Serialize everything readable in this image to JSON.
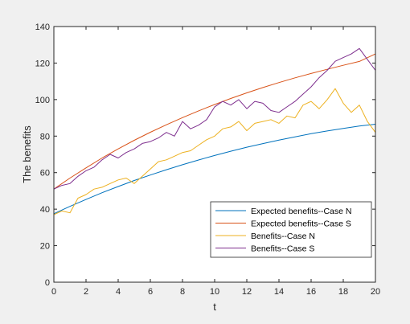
{
  "chart_data": {
    "type": "line",
    "title": "",
    "xlabel": "t",
    "ylabel": "The benefits",
    "xlim": [
      0,
      20
    ],
    "ylim": [
      0,
      140
    ],
    "xticks": [
      0,
      2,
      4,
      6,
      8,
      10,
      12,
      14,
      16,
      18,
      20
    ],
    "yticks": [
      0,
      20,
      40,
      60,
      80,
      100,
      120,
      140
    ],
    "grid": false,
    "legend_position": "bottom-right",
    "series": [
      {
        "name": "Expected benefits--Case N",
        "color": "#0072BD",
        "x": [
          0,
          1,
          2,
          3,
          4,
          5,
          6,
          7,
          8,
          9,
          10,
          11,
          12,
          13,
          14,
          15,
          16,
          17,
          18,
          19,
          20
        ],
        "y": [
          37.5,
          41.5,
          45.3,
          49,
          52.4,
          55.7,
          58.7,
          61.6,
          64.3,
          66.9,
          69.4,
          71.7,
          73.9,
          75.9,
          77.8,
          79.6,
          81.3,
          82.8,
          84.2,
          85.5,
          86.5
        ]
      },
      {
        "name": "Expected benefits--Case S",
        "color": "#D95319",
        "x": [
          0,
          1,
          2,
          3,
          4,
          5,
          6,
          7,
          8,
          9,
          10,
          11,
          12,
          13,
          14,
          15,
          16,
          17,
          18,
          19,
          20
        ],
        "y": [
          51,
          57,
          62.6,
          68,
          73,
          77.7,
          82.1,
          86.2,
          90.1,
          93.8,
          97.3,
          100.6,
          103.7,
          106.6,
          109.3,
          111.9,
          114.3,
          116.6,
          118.8,
          120.9,
          125
        ]
      },
      {
        "name": "Benefits--Case N",
        "color": "#EDB120",
        "x": [
          0,
          0.5,
          1,
          1.5,
          2,
          2.5,
          3,
          3.5,
          4,
          4.5,
          5,
          5.5,
          6,
          6.5,
          7,
          7.5,
          8,
          8.5,
          9,
          9.5,
          10,
          10.5,
          11,
          11.5,
          12,
          12.5,
          13,
          13.5,
          14,
          14.5,
          15,
          15.5,
          16,
          16.5,
          17,
          17.5,
          18,
          18.5,
          19,
          19.5,
          20
        ],
        "y": [
          37,
          39,
          38,
          46,
          48,
          51,
          52,
          54,
          56,
          57,
          54,
          58,
          62,
          66,
          67,
          69,
          71,
          72,
          75,
          78,
          80,
          84,
          85,
          88,
          83,
          87,
          88,
          89,
          87,
          91,
          90,
          97,
          99,
          95,
          100,
          106,
          98,
          93,
          97,
          88,
          82
        ]
      },
      {
        "name": "Benefits--Case S",
        "color": "#7E2F8E",
        "x": [
          0,
          0.5,
          1,
          1.5,
          2,
          2.5,
          3,
          3.5,
          4,
          4.5,
          5,
          5.5,
          6,
          6.5,
          7,
          7.5,
          8,
          8.5,
          9,
          9.5,
          10,
          10.5,
          11,
          11.5,
          12,
          12.5,
          13,
          13.5,
          14,
          14.5,
          15,
          15.5,
          16,
          16.5,
          17,
          17.5,
          18,
          18.5,
          19,
          19.5,
          20
        ],
        "y": [
          51,
          53,
          54,
          58,
          61,
          63,
          67,
          70,
          68,
          71,
          73,
          76,
          77,
          79,
          82,
          80,
          88,
          84,
          86,
          89,
          96,
          99,
          97,
          100,
          95,
          99,
          98,
          94,
          93,
          96,
          99,
          103,
          107,
          112,
          116,
          121,
          123,
          125,
          128,
          122,
          116
        ]
      }
    ]
  }
}
